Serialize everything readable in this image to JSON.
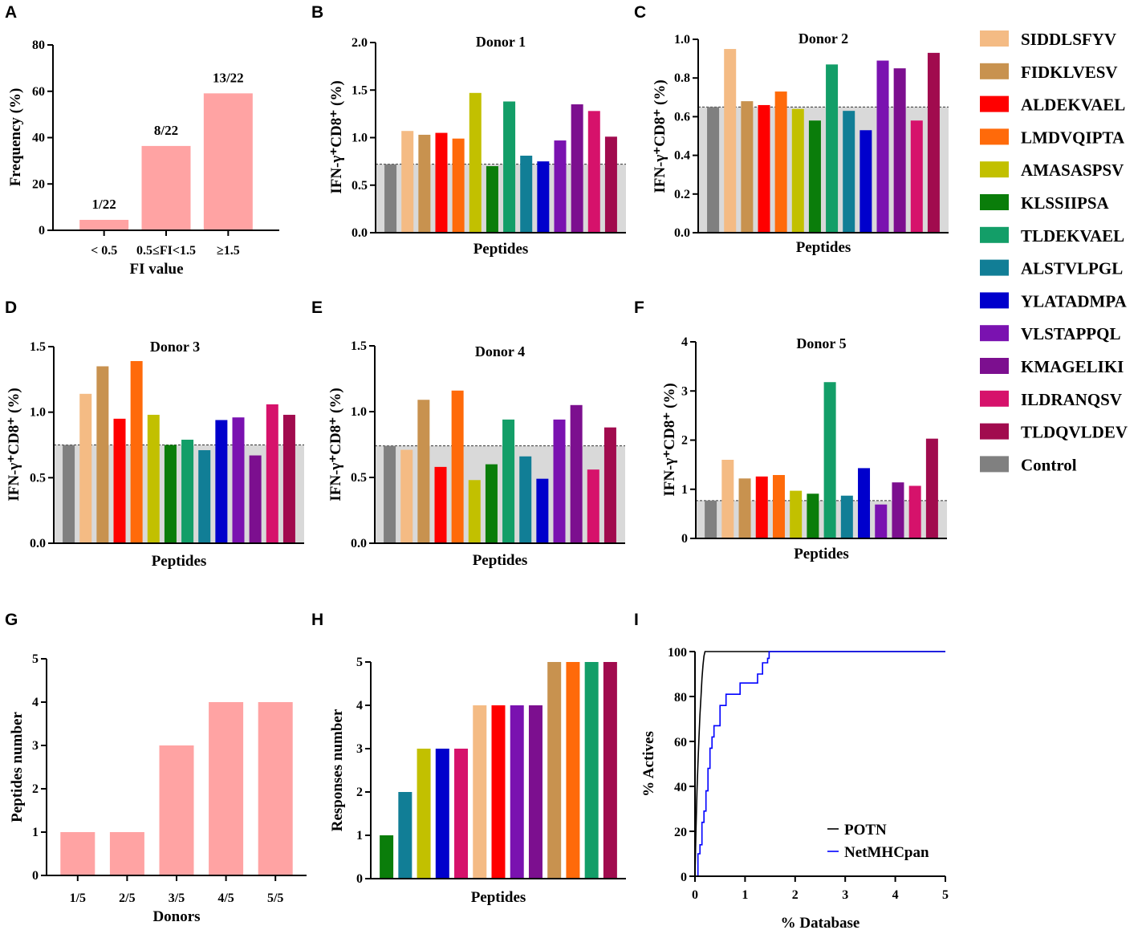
{
  "colors": {
    "control": "#808080",
    "bar_pink": "#FFA3A3",
    "baseline_fill": "#D9D9D9",
    "potn_line": "#000000",
    "netmhcpan_line": "#0000FF"
  },
  "legend": [
    {
      "label": "SIDDLSFYV",
      "color": "#F4BB84"
    },
    {
      "label": "FIDKLVESV",
      "color": "#C8924F"
    },
    {
      "label": "ALDEKVAEL",
      "color": "#FF0000"
    },
    {
      "label": "LMDVQIPTA",
      "color": "#FF6A0A"
    },
    {
      "label": "AMASASPSV",
      "color": "#C2C000"
    },
    {
      "label": "KLSSIIPSA",
      "color": "#0A7D0A"
    },
    {
      "label": "TLDEKVAEL",
      "color": "#139E68"
    },
    {
      "label": "ALSTVLPGL",
      "color": "#117E96"
    },
    {
      "label": "YLATADMPA",
      "color": "#0000CC"
    },
    {
      "label": "VLSTAPPQL",
      "color": "#7A12B0"
    },
    {
      "label": "KMAGELIKI",
      "color": "#7C0F8F"
    },
    {
      "label": "ILDRANQSV",
      "color": "#D6126B"
    },
    {
      "label": "TLDQVLDEV",
      "color": "#A10B4E"
    },
    {
      "label": "Control",
      "color": "#808080"
    }
  ],
  "chart_data": [
    {
      "panel": "A",
      "type": "bar",
      "title": "",
      "categories": [
        "< 0.5",
        "0.5≤FI<1.5",
        "≥1.5"
      ],
      "values": [
        4.5,
        36.4,
        59.1
      ],
      "data_labels": [
        "1/22",
        "8/22",
        "13/22"
      ],
      "xlabel": "FI value",
      "ylabel": "Frequency (%)",
      "ylim": [
        0,
        80
      ],
      "yticks": [
        "0",
        "20",
        "40",
        "60",
        "80"
      ]
    },
    {
      "panel": "B",
      "type": "bar",
      "title": "Donor 1",
      "categories": [
        "Control",
        "SIDDLSFYV",
        "FIDKLVESV",
        "ALDEKVAEL",
        "LMDVQIPTA",
        "AMASASPSV",
        "KLSSIIPSA",
        "TLDEKVAEL",
        "ALSTVLPGL",
        "YLATADMPA",
        "VLSTAPPQL",
        "KMAGELIKI",
        "ILDRANQSV",
        "TLDQVLDEV"
      ],
      "values": [
        0.72,
        1.07,
        1.03,
        1.05,
        0.99,
        1.47,
        0.7,
        1.38,
        0.81,
        0.75,
        0.97,
        1.35,
        1.28,
        1.01
      ],
      "baseline": 0.72,
      "xlabel": "Peptides",
      "ylabel": "IFN-γ⁺CD8⁺ (%)",
      "ylim": [
        0,
        2.0
      ],
      "yticks": [
        "0.0",
        "0.5",
        "1.0",
        "1.5",
        "2.0"
      ]
    },
    {
      "panel": "C",
      "type": "bar",
      "title": "Donor 2",
      "categories": [
        "Control",
        "SIDDLSFYV",
        "FIDKLVESV",
        "ALDEKVAEL",
        "LMDVQIPTA",
        "AMASASPSV",
        "KLSSIIPSA",
        "TLDEKVAEL",
        "ALSTVLPGL",
        "YLATADMPA",
        "VLSTAPPQL",
        "KMAGELIKI",
        "ILDRANQSV",
        "TLDQVLDEV"
      ],
      "values": [
        0.65,
        0.95,
        0.68,
        0.66,
        0.73,
        0.64,
        0.58,
        0.87,
        0.63,
        0.53,
        0.89,
        0.85,
        0.58,
        0.93
      ],
      "baseline": 0.65,
      "xlabel": "Peptides",
      "ylabel": "IFN-γ⁺CD8⁺ (%)",
      "ylim": [
        0,
        1.0
      ],
      "yticks": [
        "0.0",
        "0.2",
        "0.4",
        "0.6",
        "0.8",
        "1.0"
      ]
    },
    {
      "panel": "D",
      "type": "bar",
      "title": "Donor 3",
      "categories": [
        "Control",
        "SIDDLSFYV",
        "FIDKLVESV",
        "ALDEKVAEL",
        "LMDVQIPTA",
        "AMASASPSV",
        "KLSSIIPSA",
        "TLDEKVAEL",
        "ALSTVLPGL",
        "YLATADMPA",
        "VLSTAPPQL",
        "KMAGELIKI",
        "ILDRANQSV",
        "TLDQVLDEV"
      ],
      "values": [
        0.75,
        1.14,
        1.35,
        0.95,
        1.39,
        0.98,
        0.75,
        0.79,
        0.71,
        0.94,
        0.96,
        0.67,
        1.06,
        0.98
      ],
      "baseline": 0.75,
      "xlabel": "Peptides",
      "ylabel": "IFN-γ⁺CD8⁺ (%)",
      "ylim": [
        0,
        1.5
      ],
      "yticks": [
        "0.0",
        "0.5",
        "1.0",
        "1.5"
      ]
    },
    {
      "panel": "E",
      "type": "bar",
      "title": "Donor 4",
      "categories": [
        "Control",
        "SIDDLSFYV",
        "FIDKLVESV",
        "ALDEKVAEL",
        "LMDVQIPTA",
        "AMASASPSV",
        "KLSSIIPSA",
        "TLDEKVAEL",
        "ALSTVLPGL",
        "YLATADMPA",
        "VLSTAPPQL",
        "KMAGELIKI",
        "ILDRANQSV",
        "TLDQVLDEV"
      ],
      "values": [
        0.74,
        0.71,
        1.09,
        0.58,
        1.16,
        0.48,
        0.6,
        0.94,
        0.66,
        0.49,
        0.94,
        1.05,
        0.56,
        0.88
      ],
      "baseline": 0.74,
      "xlabel": "Peptides",
      "ylabel": "IFN-γ⁺CD8⁺ (%)",
      "ylim": [
        0,
        1.5
      ],
      "yticks": [
        "0.0",
        "0.5",
        "1.0",
        "1.5"
      ]
    },
    {
      "panel": "F",
      "type": "bar",
      "title": "Donor 5",
      "categories": [
        "Control",
        "SIDDLSFYV",
        "FIDKLVESV",
        "ALDEKVAEL",
        "LMDVQIPTA",
        "AMASASPSV",
        "KLSSIIPSA",
        "TLDEKVAEL",
        "ALSTVLPGL",
        "YLATADMPA",
        "VLSTAPPQL",
        "KMAGELIKI",
        "ILDRANQSV",
        "TLDQVLDEV"
      ],
      "values": [
        0.77,
        1.6,
        1.22,
        1.26,
        1.29,
        0.97,
        0.91,
        3.18,
        0.87,
        1.43,
        0.69,
        1.14,
        1.07,
        2.03
      ],
      "baseline": 0.77,
      "xlabel": "Peptides",
      "ylabel": "IFN-γ⁺CD8⁺ (%)",
      "ylim": [
        0,
        4
      ],
      "yticks": [
        "0",
        "1",
        "2",
        "3",
        "4"
      ]
    },
    {
      "panel": "G",
      "type": "bar",
      "title": "",
      "categories": [
        "1/5",
        "2/5",
        "3/5",
        "4/5",
        "5/5"
      ],
      "values": [
        1,
        1,
        3,
        4,
        4
      ],
      "xlabel": "Donors",
      "ylabel": "Peptides number",
      "ylim": [
        0,
        5
      ],
      "yticks": [
        "0",
        "1",
        "2",
        "3",
        "4",
        "5"
      ]
    },
    {
      "panel": "H",
      "type": "bar",
      "title": "",
      "categories": [
        "KLSSIIPSA",
        "ALSTVLPGL",
        "AMASASPSV",
        "YLATADMPA",
        "ILDRANQSV",
        "SIDDLSFYV",
        "ALDEKVAEL",
        "VLSTAPPQL",
        "KMAGELIKI",
        "FIDKLVESV",
        "LMDVQIPTA",
        "TLDEKVAEL",
        "TLDQVLDEV"
      ],
      "values": [
        1,
        2,
        3,
        3,
        3,
        4,
        4,
        4,
        4,
        5,
        5,
        5,
        5
      ],
      "xlabel": "Peptides",
      "ylabel": "Responses number",
      "ylim": [
        0,
        5
      ],
      "yticks": [
        "0",
        "1",
        "2",
        "3",
        "4",
        "5"
      ]
    },
    {
      "panel": "I",
      "type": "line",
      "title": "",
      "xlabel": "% Database",
      "ylabel": "% Actives",
      "xlim": [
        0,
        5
      ],
      "ylim": [
        0,
        100
      ],
      "xticks": [
        "0",
        "1",
        "2",
        "3",
        "4",
        "5"
      ],
      "yticks": [
        "0",
        "20",
        "40",
        "60",
        "80",
        "100"
      ],
      "series": [
        {
          "name": "POTN",
          "color": "#000000",
          "x": [
            0,
            0.02,
            0.04,
            0.06,
            0.08,
            0.1,
            0.12,
            0.14,
            0.16,
            0.18,
            0.2,
            5
          ],
          "y": [
            0,
            20,
            38,
            50,
            62,
            72,
            80,
            88,
            94,
            98,
            100,
            100
          ]
        },
        {
          "name": "NetMHCpan",
          "color": "#0000FF",
          "x": [
            0.02,
            0.06,
            0.06,
            0.1,
            0.1,
            0.14,
            0.14,
            0.18,
            0.18,
            0.22,
            0.22,
            0.26,
            0.26,
            0.3,
            0.3,
            0.34,
            0.34,
            0.38,
            0.38,
            0.42,
            0.42,
            0.5,
            0.5,
            0.62,
            0.62,
            0.7,
            0.7,
            0.9,
            0.9,
            1.25,
            1.25,
            1.35,
            1.35,
            1.45,
            1.45,
            1.48,
            1.48,
            1.5,
            5
          ],
          "y": [
            0,
            0,
            10,
            10,
            14,
            14,
            24,
            24,
            29,
            29,
            38,
            38,
            48,
            48,
            57,
            57,
            62,
            62,
            67,
            67,
            67,
            67,
            76,
            76,
            81,
            81,
            81,
            81,
            86,
            86,
            90,
            90,
            95,
            95,
            97,
            97,
            100,
            100,
            100
          ]
        }
      ]
    }
  ],
  "panel_letters": [
    "A",
    "B",
    "C",
    "D",
    "E",
    "F",
    "G",
    "H",
    "I"
  ]
}
